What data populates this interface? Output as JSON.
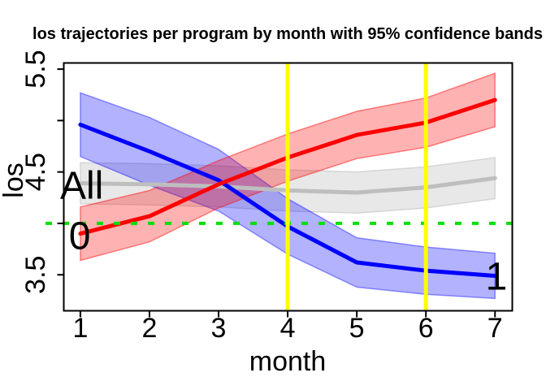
{
  "chart_data": {
    "type": "line",
    "title": "los trajectories per program by month with 95% confidence bands",
    "xlabel": "month",
    "ylabel": "los",
    "x": [
      1,
      2,
      3,
      4,
      5,
      6,
      7
    ],
    "xlim": [
      0.76,
      7.25
    ],
    "ylim": [
      3.15,
      5.56
    ],
    "grid": "off",
    "legend": "none",
    "x_ticks": [
      {
        "v": 1,
        "label": "1"
      },
      {
        "v": 2,
        "label": "2"
      },
      {
        "v": 3,
        "label": "3"
      },
      {
        "v": 4,
        "label": "4"
      },
      {
        "v": 5,
        "label": "5"
      },
      {
        "v": 6,
        "label": "6"
      },
      {
        "v": 7,
        "label": "7"
      }
    ],
    "y_ticks": [
      {
        "v": 3.5,
        "label": "3.5"
      },
      {
        "v": 4.0,
        "label": ""
      },
      {
        "v": 4.5,
        "label": "4.5"
      },
      {
        "v": 5.0,
        "label": ""
      },
      {
        "v": 5.5,
        "label": "5.5"
      }
    ],
    "series": [
      {
        "name": "program-0",
        "label": "0",
        "color": "#ff0000",
        "band_fill": "rgba(255,0,0,0.30)",
        "band_edge": "rgba(255,0,0,0.45)",
        "values": [
          3.9,
          4.07,
          4.38,
          4.64,
          4.86,
          4.98,
          5.2
        ],
        "band_low": [
          3.64,
          3.82,
          4.15,
          4.41,
          4.63,
          4.74,
          4.94
        ],
        "band_high": [
          4.16,
          4.32,
          4.61,
          4.87,
          5.09,
          5.22,
          5.46
        ],
        "label_x": 0.99,
        "label_y": 3.885
      },
      {
        "name": "program-1",
        "label": "1",
        "color": "#0000ff",
        "band_fill": "rgba(0,0,255,0.30)",
        "band_edge": "rgba(0,0,255,0.40)",
        "values": [
          4.96,
          4.7,
          4.42,
          3.97,
          3.62,
          3.54,
          3.49
        ],
        "band_low": [
          4.65,
          4.37,
          4.12,
          3.7,
          3.38,
          3.31,
          3.27
        ],
        "band_high": [
          5.27,
          5.03,
          4.72,
          4.24,
          3.86,
          3.77,
          3.71
        ],
        "label_x": 7.02,
        "label_y": 3.49
      },
      {
        "name": "all",
        "label": "All",
        "color": "#bebebe",
        "band_fill": "rgba(190,190,190,0.35)",
        "band_edge": "rgba(190,190,190,0.55)",
        "values": [
          4.39,
          4.38,
          4.36,
          4.32,
          4.3,
          4.35,
          4.44
        ],
        "band_low": [
          4.19,
          4.18,
          4.16,
          4.12,
          4.1,
          4.15,
          4.24
        ],
        "band_high": [
          4.59,
          4.58,
          4.56,
          4.52,
          4.5,
          4.55,
          4.64
        ],
        "label_x": 1.02,
        "label_y": 4.375
      }
    ],
    "reference_lines": {
      "hline": {
        "y": 4.0,
        "color": "#00e000",
        "style": "dotted"
      },
      "vlines": [
        {
          "x": 4,
          "color": "#ffff00"
        },
        {
          "x": 6,
          "color": "#ffff00"
        }
      ]
    }
  }
}
